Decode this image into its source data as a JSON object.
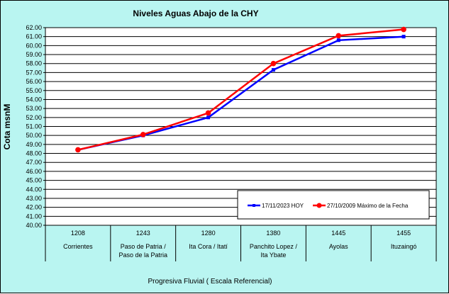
{
  "chart_data": {
    "type": "line",
    "title": "Niveles Aguas Abajo de la CHY",
    "ylabel": "Cota msnM",
    "xlabel": "Progresiva Fluvial ( Escala Referencial)",
    "ylim": [
      40.0,
      62.0
    ],
    "y_tick_step": 1.0,
    "grid": true,
    "legend_placement": "bottom-right",
    "categories": [
      {
        "km": "1208",
        "name": [
          "Corrientes"
        ]
      },
      {
        "km": "1243",
        "name": [
          "Paso de Patria /",
          "Paso de la Patria"
        ]
      },
      {
        "km": "1280",
        "name": [
          "Ita Cora / Itatí"
        ]
      },
      {
        "km": "1380",
        "name": [
          "Panchito Lopez /",
          "Ita Ybate"
        ]
      },
      {
        "km": "1445",
        "name": [
          "Ayolas"
        ]
      },
      {
        "km": "1455",
        "name": [
          "Ituzaingó"
        ]
      }
    ],
    "series": [
      {
        "name": "17/11/2023 HOY",
        "color": "#0000ff",
        "marker": "square",
        "values": [
          48.4,
          50.0,
          52.0,
          57.3,
          60.6,
          61.0
        ]
      },
      {
        "name": "27/10/2009 Máximo de la Fecha",
        "color": "#ff0000",
        "marker": "circle",
        "values": [
          48.4,
          50.1,
          52.5,
          58.0,
          61.1,
          61.8
        ]
      }
    ]
  }
}
